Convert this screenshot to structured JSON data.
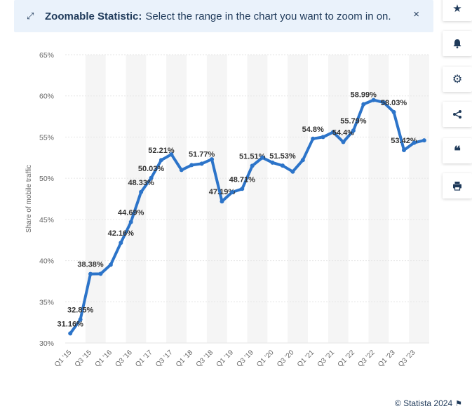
{
  "banner": {
    "title": "Zoomable Statistic:",
    "message": "Select the range in the chart you want to zoom in on.",
    "close": "×"
  },
  "toolbar": {
    "star": "★",
    "bell": "🔔",
    "gear": "⚙",
    "share": "share",
    "quote": "❝",
    "print": "print"
  },
  "footer": {
    "credit": "© Statista 2024",
    "flag": "⚑"
  },
  "colors": {
    "line": "#2c74c9",
    "grid": "#e6e6e6",
    "band": "#f5f5f5",
    "label": "#333333"
  },
  "chart_data": {
    "type": "line",
    "ylabel": "Share of mobile traffic",
    "ylim": [
      30,
      65
    ],
    "yticks": [
      30,
      35,
      40,
      45,
      50,
      55,
      60,
      65
    ],
    "ytick_labels": [
      "30%",
      "35%",
      "40%",
      "45%",
      "50%",
      "55%",
      "60%",
      "65%"
    ],
    "xtick_labels": [
      "Q1 '15",
      "Q3 '15",
      "Q1 '16",
      "Q3 '16",
      "Q1 '17",
      "Q3 '17",
      "Q1 '18",
      "Q3 '18",
      "Q1 '19",
      "Q3 '19",
      "Q1 '20",
      "Q3 '20",
      "Q1 '21",
      "Q3 '21",
      "Q1 '22",
      "Q3 '22",
      "Q1 '23",
      "Q3 '23"
    ],
    "grid": true,
    "series": [
      {
        "values": [
          31.16,
          32.85,
          38.38,
          38.4,
          39.5,
          42.16,
          44.69,
          48.33,
          50.03,
          52.21,
          52.9,
          51.0,
          51.6,
          51.77,
          52.3,
          47.19,
          48.3,
          48.71,
          51.51,
          52.5,
          51.9,
          51.53,
          50.8,
          52.2,
          54.8,
          55.0,
          55.6,
          54.4,
          55.79,
          58.99,
          59.5,
          59.2,
          58.03,
          53.42,
          54.3,
          54.6
        ],
        "labels": [
          "31.16%",
          "32.85%",
          "38.38%",
          "",
          "",
          "42.16%",
          "44.69%",
          "48.33%",
          "50.03%",
          "52.21%",
          "",
          "",
          "",
          "51.77%",
          "",
          "47.19%",
          "",
          "48.71%",
          "51.51%",
          "",
          "",
          "51.53%",
          "",
          "",
          "54.8%",
          "",
          "",
          "54.4%",
          "55.79%",
          "58.99%",
          "",
          "",
          "58.03%",
          "53.42%",
          "",
          ""
        ]
      }
    ]
  }
}
